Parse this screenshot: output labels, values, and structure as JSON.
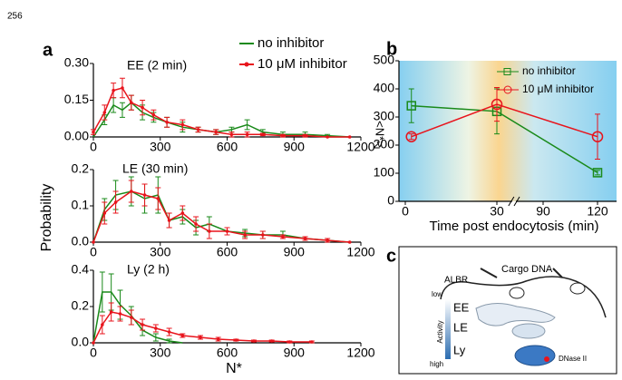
{
  "page_number": "256",
  "panel_labels": [
    "a",
    "b",
    "c"
  ],
  "chart_data": [
    {
      "type": "line",
      "title": "EE (2 min)",
      "x": [
        0,
        50,
        90,
        130,
        170,
        220,
        270,
        330,
        400,
        470,
        550,
        620,
        690,
        760,
        850,
        950,
        1050,
        1150
      ],
      "series": [
        {
          "name": "no inhibitor",
          "color": "#1a8a1a",
          "values": [
            0,
            0.07,
            0.13,
            0.11,
            0.14,
            0.1,
            0.08,
            0.06,
            0.04,
            0.03,
            0.02,
            0.03,
            0.05,
            0.02,
            0.01,
            0.01,
            0.005,
            0
          ],
          "errors": [
            0,
            0.02,
            0.03,
            0.03,
            0.03,
            0.03,
            0.02,
            0.02,
            0.02,
            0.01,
            0.01,
            0.01,
            0.02,
            0.01,
            0.01,
            0.01,
            0.005,
            0
          ]
        },
        {
          "name": "10 μM inhibitor",
          "color": "#e8141c",
          "values": [
            0.02,
            0.1,
            0.19,
            0.2,
            0.14,
            0.12,
            0.09,
            0.06,
            0.05,
            0.03,
            0.02,
            0.01,
            0.01,
            0.01,
            0.005,
            0.005,
            0,
            0
          ],
          "errors": [
            0.01,
            0.03,
            0.03,
            0.04,
            0.03,
            0.03,
            0.02,
            0.02,
            0.02,
            0.01,
            0.01,
            0.01,
            0.01,
            0.005,
            0.005,
            0.005,
            0,
            0
          ]
        }
      ],
      "xlim": [
        0,
        1200
      ],
      "xticks": [
        0,
        300,
        600,
        900,
        1200
      ],
      "ylim": [
        0,
        0.3
      ],
      "yticks": [
        {
          "value": 0,
          "label": "0.00"
        },
        0.15,
        {
          "value": 0.3,
          "label": "0.30"
        }
      ]
    },
    {
      "type": "line",
      "title": "LE (30 min)",
      "ylabel": "Probability",
      "x": [
        0,
        50,
        100,
        170,
        230,
        290,
        340,
        400,
        460,
        520,
        600,
        680,
        760,
        850,
        950,
        1050,
        1150
      ],
      "series": [
        {
          "name": "no inhibitor",
          "color": "#1a8a1a",
          "values": [
            0,
            0.09,
            0.13,
            0.14,
            0.12,
            0.13,
            0.06,
            0.07,
            0.04,
            0.05,
            0.03,
            0.025,
            0.02,
            0.02,
            0.01,
            0.005,
            0
          ],
          "errors": [
            0,
            0.03,
            0.04,
            0.04,
            0.04,
            0.05,
            0.02,
            0.02,
            0.02,
            0.02,
            0.01,
            0.01,
            0.01,
            0.01,
            0.005,
            0.005,
            0
          ]
        },
        {
          "name": "10 μM inhibitor",
          "color": "#e8141c",
          "values": [
            0,
            0.08,
            0.11,
            0.14,
            0.13,
            0.12,
            0.06,
            0.08,
            0.05,
            0.03,
            0.03,
            0.02,
            0.02,
            0.015,
            0.01,
            0.005,
            0
          ],
          "errors": [
            0,
            0.03,
            0.03,
            0.03,
            0.03,
            0.03,
            0.02,
            0.02,
            0.02,
            0.02,
            0.01,
            0.01,
            0.01,
            0.005,
            0.005,
            0.005,
            0
          ]
        }
      ],
      "xlim": [
        0,
        1200
      ],
      "xticks": [
        0,
        300,
        600,
        900,
        1200
      ],
      "ylim": [
        0,
        0.2
      ],
      "yticks": [
        {
          "value": 0,
          "label": "0.0"
        },
        0.1,
        0.2
      ]
    },
    {
      "type": "line",
      "title": "Ly (2 h)",
      "xlabel": "N*",
      "x": [
        0,
        40,
        80,
        120,
        170,
        220,
        280,
        340,
        400,
        480,
        560,
        640,
        720,
        800,
        880,
        980
      ],
      "series": [
        {
          "name": "no inhibitor",
          "color": "#1a8a1a",
          "values": [
            0,
            0.28,
            0.28,
            0.21,
            0.15,
            0.07,
            0.03,
            0.01,
            0,
            null,
            null,
            null,
            null,
            null,
            null,
            null
          ],
          "errors": [
            0,
            0.11,
            0.1,
            0.08,
            0.05,
            0.03,
            0.02,
            0.01,
            0,
            null,
            null,
            null,
            null,
            null,
            null,
            null
          ]
        },
        {
          "name": "10 μM inhibitor",
          "color": "#e8141c",
          "values": [
            0,
            0.1,
            0.17,
            0.16,
            0.14,
            0.1,
            0.08,
            0.06,
            0.04,
            0.03,
            0.02,
            0.015,
            0.01,
            0.01,
            0.005,
            0.005
          ],
          "errors": [
            0,
            0.05,
            0.05,
            0.04,
            0.04,
            0.03,
            0.02,
            0.02,
            0.01,
            0.01,
            0.01,
            0.005,
            0.005,
            0.005,
            0.005,
            0.005
          ]
        }
      ],
      "xlim": [
        0,
        1200
      ],
      "xticks": [
        0,
        300,
        600,
        900,
        1200
      ],
      "ylim": [
        0,
        0.4
      ],
      "yticks": [
        {
          "value": 0,
          "label": "0.0"
        },
        0.2,
        0.4
      ]
    },
    {
      "type": "line-marker",
      "ylabel": "<N*>",
      "xlabel": "Time post endocytosis (min)",
      "x": [
        2,
        30,
        120
      ],
      "series": [
        {
          "name": "no inhibitor",
          "color": "#1a8a1a",
          "marker": "square",
          "values": [
            340,
            320,
            102
          ],
          "errors": [
            60,
            80,
            8
          ]
        },
        {
          "name": "10 μM inhibitor",
          "color": "#e8141c",
          "marker": "circle",
          "values": [
            230,
            345,
            230
          ],
          "errors": [
            10,
            60,
            80
          ]
        }
      ],
      "xlim": [
        0,
        125
      ],
      "xbreak": [
        35,
        75
      ],
      "xticks": [
        0,
        30,
        90,
        120
      ],
      "ylim": [
        0,
        500
      ],
      "yticks": [
        0,
        100,
        200,
        300,
        400,
        500
      ]
    }
  ],
  "diagram": {
    "labels": {
      "albr": "ALBR",
      "cargo": "Cargo DNA",
      "low": "low",
      "ee": "EE",
      "le": "LE",
      "ly": "Ly",
      "activity": "Activity",
      "high": "high",
      "dnase": "DNase II"
    }
  }
}
